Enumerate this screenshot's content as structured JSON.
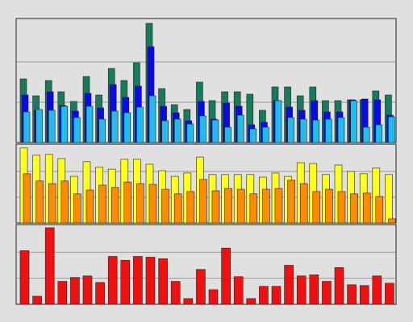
{
  "chart_data": [
    {
      "type": "bar",
      "categories": [
        null,
        null,
        null,
        null,
        null,
        null,
        null,
        null,
        null,
        null,
        null,
        null,
        null,
        null,
        null,
        null,
        null,
        null,
        null,
        null,
        null,
        null,
        null,
        null,
        null,
        null,
        null,
        null,
        null,
        null
      ],
      "series": [
        {
          "color": "#1a7a5e",
          "values": [
            1.58,
            1.16,
            1.54,
            1.26,
            1.02,
            1.64,
            1.18,
            1.84,
            1.54,
            1.98,
            2.96,
            1.34,
            0.94,
            0.82,
            1.5,
            1.04,
            1.26,
            1.26,
            1.2,
            0.8,
            1.38,
            1.38,
            1.16,
            1.38,
            1.04,
            1.04,
            1.06,
            1.06,
            1.28,
            1.18
          ]
        },
        {
          "color": "#0a0ae6",
          "values": [
            1.18,
            0.8,
            1.26,
            0.92,
            0.78,
            1.22,
            0.86,
            1.44,
            1.12,
            1.4,
            2.38,
            0.9,
            0.74,
            0.54,
            1.02,
            0.58,
            0.98,
            0.9,
            0.44,
            0.5,
            1.04,
            0.88,
            0.8,
            1.04,
            0.76,
            0.76,
            1.06,
            1.08,
            1.06,
            0.68
          ]
        },
        {
          "color": "#22bbee",
          "values": [
            0.76,
            0.82,
            0.8,
            0.9,
            0.62,
            0.9,
            0.58,
            0.78,
            0.74,
            0.88,
            1.16,
            0.54,
            0.58,
            0.46,
            0.66,
            0.56,
            0.38,
            0.68,
            0.34,
            0.38,
            1.04,
            0.62,
            0.58,
            0.56,
            0.58,
            0.62,
            1.04,
            0.38,
            0.44,
            0.64
          ]
        }
      ],
      "ylim": [
        0,
        3.04
      ],
      "yticks": [
        1,
        2
      ],
      "grid": true
    },
    {
      "type": "bar",
      "categories": [
        null,
        null,
        null,
        null,
        null,
        null,
        null,
        null,
        null,
        null,
        null,
        null,
        null,
        null,
        null,
        null,
        null,
        null,
        null,
        null,
        null,
        null,
        null,
        null,
        null,
        null,
        null,
        null,
        null,
        null
      ],
      "series": [
        {
          "color": "#ffff22",
          "values": [
            2.91,
            2.63,
            2.66,
            2.5,
            1.81,
            2.38,
            2.16,
            2.09,
            2.47,
            2.47,
            2.28,
            2.03,
            1.81,
            1.94,
            2.56,
            1.88,
            1.88,
            1.88,
            1.88,
            1.78,
            1.94,
            1.81,
            2.34,
            2.31,
            1.88,
            2.25,
            2,
            1.91,
            2.13,
            1.88
          ]
        },
        {
          "color": "#ff8c00",
          "values": [
            1.91,
            1.63,
            1.53,
            1.63,
            1.13,
            1.28,
            1.47,
            1.38,
            1.59,
            1.53,
            1.5,
            1.31,
            1.13,
            1.22,
            1.69,
            1.25,
            1.34,
            1.31,
            1.13,
            1.31,
            1.34,
            1.66,
            1.53,
            1.22,
            1.31,
            1.22,
            1.13,
            1.16,
            1.03,
            0.16
          ]
        }
      ],
      "ylim": [
        0,
        3
      ],
      "yticks": [
        1,
        2
      ],
      "grid": true
    },
    {
      "type": "bar",
      "categories": [
        null,
        null,
        null,
        null,
        null,
        null,
        null,
        null,
        null,
        null,
        null,
        null,
        null,
        null,
        null,
        null,
        null,
        null,
        null,
        null,
        null,
        null,
        null,
        null,
        null,
        null,
        null,
        null,
        null,
        null
      ],
      "series": [
        {
          "color": "#ee1111",
          "values": [
            2.06,
            0.31,
            2.94,
            0.88,
            1.03,
            1.09,
            0.84,
            1.84,
            1.69,
            1.84,
            1.81,
            1.75,
            0.88,
            0.22,
            1.34,
            0.56,
            2.16,
            1.06,
            0.22,
            0.69,
            0.69,
            1.5,
            1.09,
            1.13,
            0.88,
            1.41,
            0.75,
            0.72,
            1.09,
            0.81
          ]
        }
      ],
      "ylim": [
        0,
        3
      ],
      "yticks": [
        1,
        2
      ],
      "grid": true
    }
  ]
}
